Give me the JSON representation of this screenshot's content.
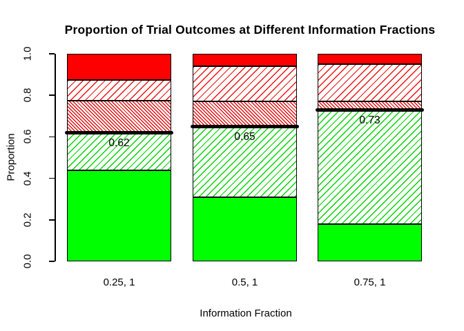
{
  "chart_data": {
    "type": "bar",
    "stacked": true,
    "title": "Proportion of Trial Outcomes at Different Information Fractions",
    "xlabel": "Information Fraction",
    "ylabel": "Proportion",
    "ylim": [
      0,
      1
    ],
    "yticks": [
      "0.0",
      "0.2",
      "0.4",
      "0.6",
      "0.8",
      "1.0"
    ],
    "grid": false,
    "legend": "none",
    "categories": [
      "0.25, 1",
      "0.5, 1",
      "0.75, 1"
    ],
    "series": [
      {
        "name": "solid-green",
        "pattern": "solid",
        "color": "#00FF00",
        "values": [
          0.44,
          0.31,
          0.18
        ]
      },
      {
        "name": "green-hatch",
        "pattern": "hatch-45",
        "color": "#00FF00",
        "values": [
          0.18,
          0.34,
          0.55
        ]
      },
      {
        "name": "red-dense-hatch",
        "pattern": "hatch-135-dense",
        "color": "#FF0000",
        "values": [
          0.155,
          0.12,
          0.04
        ]
      },
      {
        "name": "red-hatch",
        "pattern": "hatch-45",
        "color": "#FF0000",
        "values": [
          0.1,
          0.17,
          0.18
        ]
      },
      {
        "name": "solid-red",
        "pattern": "solid",
        "color": "#FF0000",
        "values": [
          0.125,
          0.06,
          0.05
        ]
      }
    ],
    "markers": {
      "color": "#000000",
      "values": [
        0.62,
        0.65,
        0.73
      ],
      "labels": [
        "0.62",
        "0.65",
        "0.73"
      ]
    }
  }
}
